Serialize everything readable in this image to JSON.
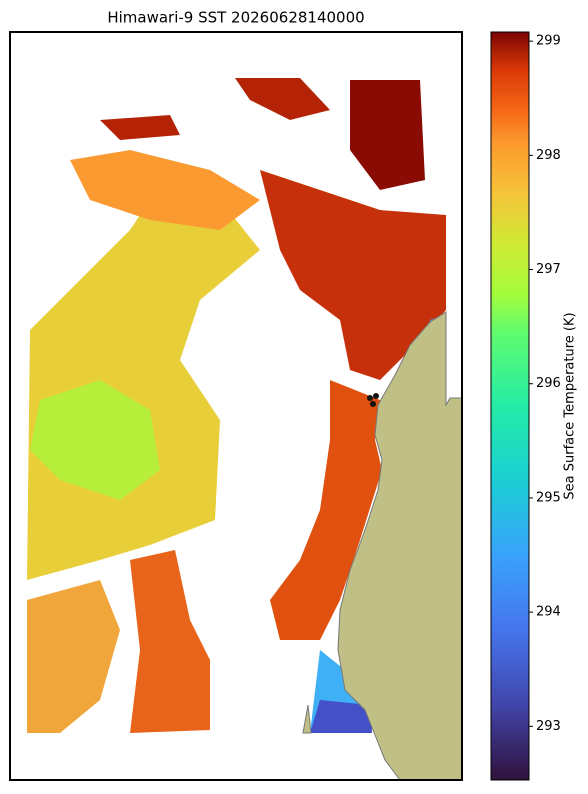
{
  "chart_data": {
    "type": "heatmap",
    "title": "Himawari-9 SST 20260628140000",
    "colorbar_label": "Sea Surface Temperature (K)",
    "clim": [
      292.53,
      299.08
    ],
    "colorbar_ticks": [
      293,
      294,
      295,
      296,
      297,
      298,
      299
    ]
  }
}
